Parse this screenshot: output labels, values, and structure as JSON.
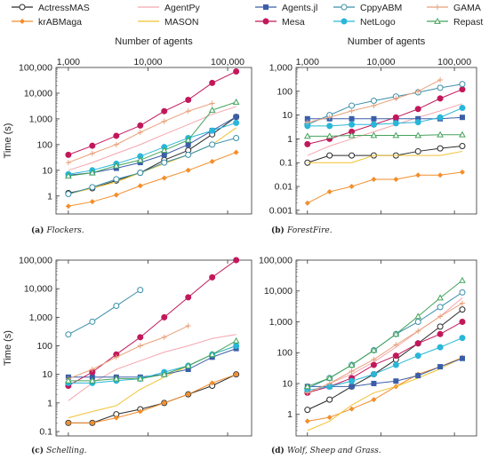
{
  "legend": [
    {
      "name": "ActressMAS",
      "color": "#2b2b2b",
      "marker": "circle-open"
    },
    {
      "name": "krABMaga",
      "color": "#f28e2b",
      "marker": "diamond"
    },
    {
      "name": "AgentPy",
      "color": "#f4a6b0",
      "marker": "none"
    },
    {
      "name": "MASON",
      "color": "#f1c232",
      "marker": "none"
    },
    {
      "name": "Agents.jl",
      "color": "#3a5ea8",
      "marker": "square"
    },
    {
      "name": "Mesa",
      "color": "#c2185b",
      "marker": "circle"
    },
    {
      "name": "CppyABM",
      "color": "#3a8fa8",
      "marker": "circle-open"
    },
    {
      "name": "NetLogo",
      "color": "#29b6d8",
      "marker": "circle"
    },
    {
      "name": "GAMA",
      "color": "#e8a07a",
      "marker": "plus"
    },
    {
      "name": "Repast",
      "color": "#43a35b",
      "marker": "triangle"
    }
  ],
  "chart_data": [
    {
      "type": "line",
      "id": "a",
      "xscale": "log",
      "yscale": "log",
      "xlabel": "Number of agents",
      "ylabel": "Time (s)",
      "caption_label": "(a)",
      "caption_text": "Flockers.",
      "xlim": [
        700,
        200000
      ],
      "ylim": [
        0.2,
        100000
      ],
      "xticks": [
        "1,000",
        "10,000",
        "100,000"
      ],
      "yticks": [
        "1",
        "10",
        "100",
        "1,000",
        "10,000",
        "100,000"
      ],
      "x": [
        1000,
        2000,
        4000,
        8000,
        16000,
        32000,
        64000,
        128000
      ],
      "series": [
        {
          "name": "ActressMAS",
          "values": [
            1.3,
            2,
            4,
            8,
            25,
            60,
            250,
            1200
          ]
        },
        {
          "name": "krABMaga",
          "values": [
            0.4,
            0.6,
            1.1,
            2.5,
            5,
            10,
            22,
            50
          ]
        },
        {
          "name": "AgentPy",
          "values": [
            10,
            20,
            45,
            100,
            250,
            600,
            1500,
            3000
          ]
        },
        {
          "name": "MASON",
          "values": [
            1.2,
            2,
            3.5,
            8,
            18,
            40,
            100,
            450
          ]
        },
        {
          "name": "Agents.jl",
          "values": [
            6.5,
            8,
            12,
            20,
            40,
            100,
            350,
            1200
          ]
        },
        {
          "name": "Mesa",
          "values": [
            40,
            90,
            220,
            550,
            2000,
            5500,
            25000,
            70000
          ]
        },
        {
          "name": "CppyABM",
          "values": [
            1.2,
            2.2,
            4.5,
            8,
            20,
            40,
            100,
            180
          ]
        },
        {
          "name": "NetLogo",
          "values": [
            7,
            10,
            18,
            35,
            80,
            180,
            350,
            700
          ]
        },
        {
          "name": "GAMA",
          "values": [
            20,
            45,
            100,
            300,
            800,
            2000,
            4000,
            null
          ]
        },
        {
          "name": "Repast",
          "values": [
            6,
            8,
            15,
            25,
            60,
            150,
            2200,
            4500
          ]
        }
      ]
    },
    {
      "type": "line",
      "id": "b",
      "xscale": "log",
      "yscale": "log",
      "xlabel": "Number of agents",
      "ylabel": "",
      "caption_label": "(b)",
      "caption_text": "ForestFire.",
      "xlim": [
        700,
        200000
      ],
      "ylim": [
        0.0007,
        1000
      ],
      "xticks": [
        "1,000",
        "10,000",
        "100,000"
      ],
      "yticks": [
        "0.001",
        "0.01",
        "0.1",
        "1",
        "10",
        "100",
        "1,000"
      ],
      "x": [
        1000,
        2000,
        4000,
        8000,
        16000,
        32000,
        64000,
        128000
      ],
      "series": [
        {
          "name": "ActressMAS",
          "values": [
            0.1,
            0.2,
            0.2,
            0.2,
            0.2,
            0.3,
            0.4,
            0.5
          ]
        },
        {
          "name": "krABMaga",
          "values": [
            0.002,
            0.006,
            0.01,
            0.02,
            0.02,
            0.03,
            0.03,
            0.04
          ]
        },
        {
          "name": "AgentPy",
          "values": [
            0.2,
            0.5,
            1,
            2,
            4,
            8,
            15,
            30
          ]
        },
        {
          "name": "MASON",
          "values": [
            0.1,
            0.1,
            0.1,
            0.2,
            0.2,
            0.2,
            0.2,
            0.3
          ]
        },
        {
          "name": "Agents.jl",
          "values": [
            7,
            7,
            7,
            7,
            7,
            7,
            7,
            8
          ]
        },
        {
          "name": "Mesa",
          "values": [
            0.6,
            1,
            2,
            4,
            8,
            18,
            50,
            120
          ]
        },
        {
          "name": "CppyABM",
          "values": [
            4,
            10,
            25,
            40,
            60,
            90,
            140,
            200
          ]
        },
        {
          "name": "NetLogo",
          "values": [
            3.5,
            3.5,
            4,
            4,
            4.5,
            5,
            8,
            20
          ]
        },
        {
          "name": "GAMA",
          "values": [
            5,
            8,
            15,
            25,
            50,
            100,
            300,
            null
          ]
        },
        {
          "name": "Repast",
          "values": [
            1.3,
            1.3,
            1.4,
            1.4,
            1.4,
            1.4,
            1.5,
            1.5
          ]
        }
      ]
    },
    {
      "type": "line",
      "id": "c",
      "xscale": "log",
      "yscale": "log",
      "xlabel": "",
      "ylabel": "Time (s)",
      "caption_label": "(c)",
      "caption_text": "Schelling.",
      "xlim": [
        700,
        200000
      ],
      "ylim": [
        0.07,
        100000
      ],
      "xticks": [],
      "yticks": [
        "0.1",
        "1",
        "10",
        "100",
        "1,000",
        "10,000",
        "100,000"
      ],
      "x": [
        1000,
        2000,
        4000,
        8000,
        16000,
        32000,
        64000,
        128000
      ],
      "series": [
        {
          "name": "ActressMAS",
          "values": [
            0.2,
            0.2,
            0.4,
            0.6,
            1,
            2,
            4,
            10
          ]
        },
        {
          "name": "krABMaga",
          "values": [
            0.2,
            0.2,
            0.3,
            0.5,
            1,
            2,
            5,
            10
          ]
        },
        {
          "name": "AgentPy",
          "values": [
            1.2,
            5,
            15,
            30,
            60,
            100,
            180,
            250
          ]
        },
        {
          "name": "MASON",
          "values": [
            0.3,
            0.5,
            0.8,
            3,
            8,
            20,
            50,
            100
          ]
        },
        {
          "name": "Agents.jl",
          "values": [
            8,
            8,
            8,
            8,
            10,
            15,
            40,
            80
          ]
        },
        {
          "name": "Mesa",
          "values": [
            4,
            12,
            50,
            200,
            1000,
            5000,
            25000,
            100000
          ]
        },
        {
          "name": "CppyABM",
          "values": [
            250,
            700,
            2500,
            9000,
            null,
            null,
            null,
            null
          ]
        },
        {
          "name": "NetLogo",
          "values": [
            5,
            5,
            6,
            7,
            12,
            20,
            50,
            100
          ]
        },
        {
          "name": "GAMA",
          "values": [
            7,
            15,
            40,
            100,
            200,
            500,
            null,
            null
          ]
        },
        {
          "name": "Repast",
          "values": [
            6,
            6,
            7,
            7,
            10,
            20,
            50,
            150
          ]
        }
      ]
    },
    {
      "type": "line",
      "id": "d",
      "xscale": "log",
      "yscale": "log",
      "xlabel": "",
      "ylabel": "",
      "caption_label": "(d)",
      "caption_text": "Wolf, Sheep and Grass.",
      "xlim": [
        700,
        200000
      ],
      "ylim": [
        0.2,
        100000
      ],
      "xticks": [],
      "yticks": [
        "1",
        "10",
        "100",
        "1,000",
        "10,000",
        "100,000"
      ],
      "x": [
        1000,
        2000,
        4000,
        8000,
        16000,
        32000,
        64000,
        128000
      ],
      "series": [
        {
          "name": "ActressMAS",
          "values": [
            1.4,
            3,
            8,
            20,
            60,
            200,
            700,
            2500
          ]
        },
        {
          "name": "krABMaga",
          "values": [
            0.6,
            0.8,
            1.5,
            3,
            8,
            20,
            35,
            70
          ]
        },
        {
          "name": "AgentPy",
          "values": [
            5,
            10,
            20,
            50,
            150,
            500,
            1500,
            6000
          ]
        },
        {
          "name": "MASON",
          "values": [
            0.3,
            0.6,
            2,
            5,
            8,
            15,
            30,
            70
          ]
        },
        {
          "name": "Agents.jl",
          "values": [
            8,
            8,
            8,
            10,
            12,
            18,
            35,
            65
          ]
        },
        {
          "name": "Mesa",
          "values": [
            5,
            8,
            15,
            40,
            80,
            200,
            400,
            1000
          ]
        },
        {
          "name": "CppyABM",
          "values": [
            7,
            15,
            40,
            120,
            400,
            1000,
            3000,
            9000
          ]
        },
        {
          "name": "NetLogo",
          "values": [
            6,
            8,
            12,
            20,
            40,
            80,
            150,
            300
          ]
        },
        {
          "name": "GAMA",
          "values": [
            5,
            10,
            25,
            60,
            180,
            500,
            1500,
            4000
          ]
        },
        {
          "name": "Repast",
          "values": [
            8,
            15,
            40,
            120,
            400,
            1500,
            6000,
            22000
          ]
        }
      ]
    }
  ]
}
